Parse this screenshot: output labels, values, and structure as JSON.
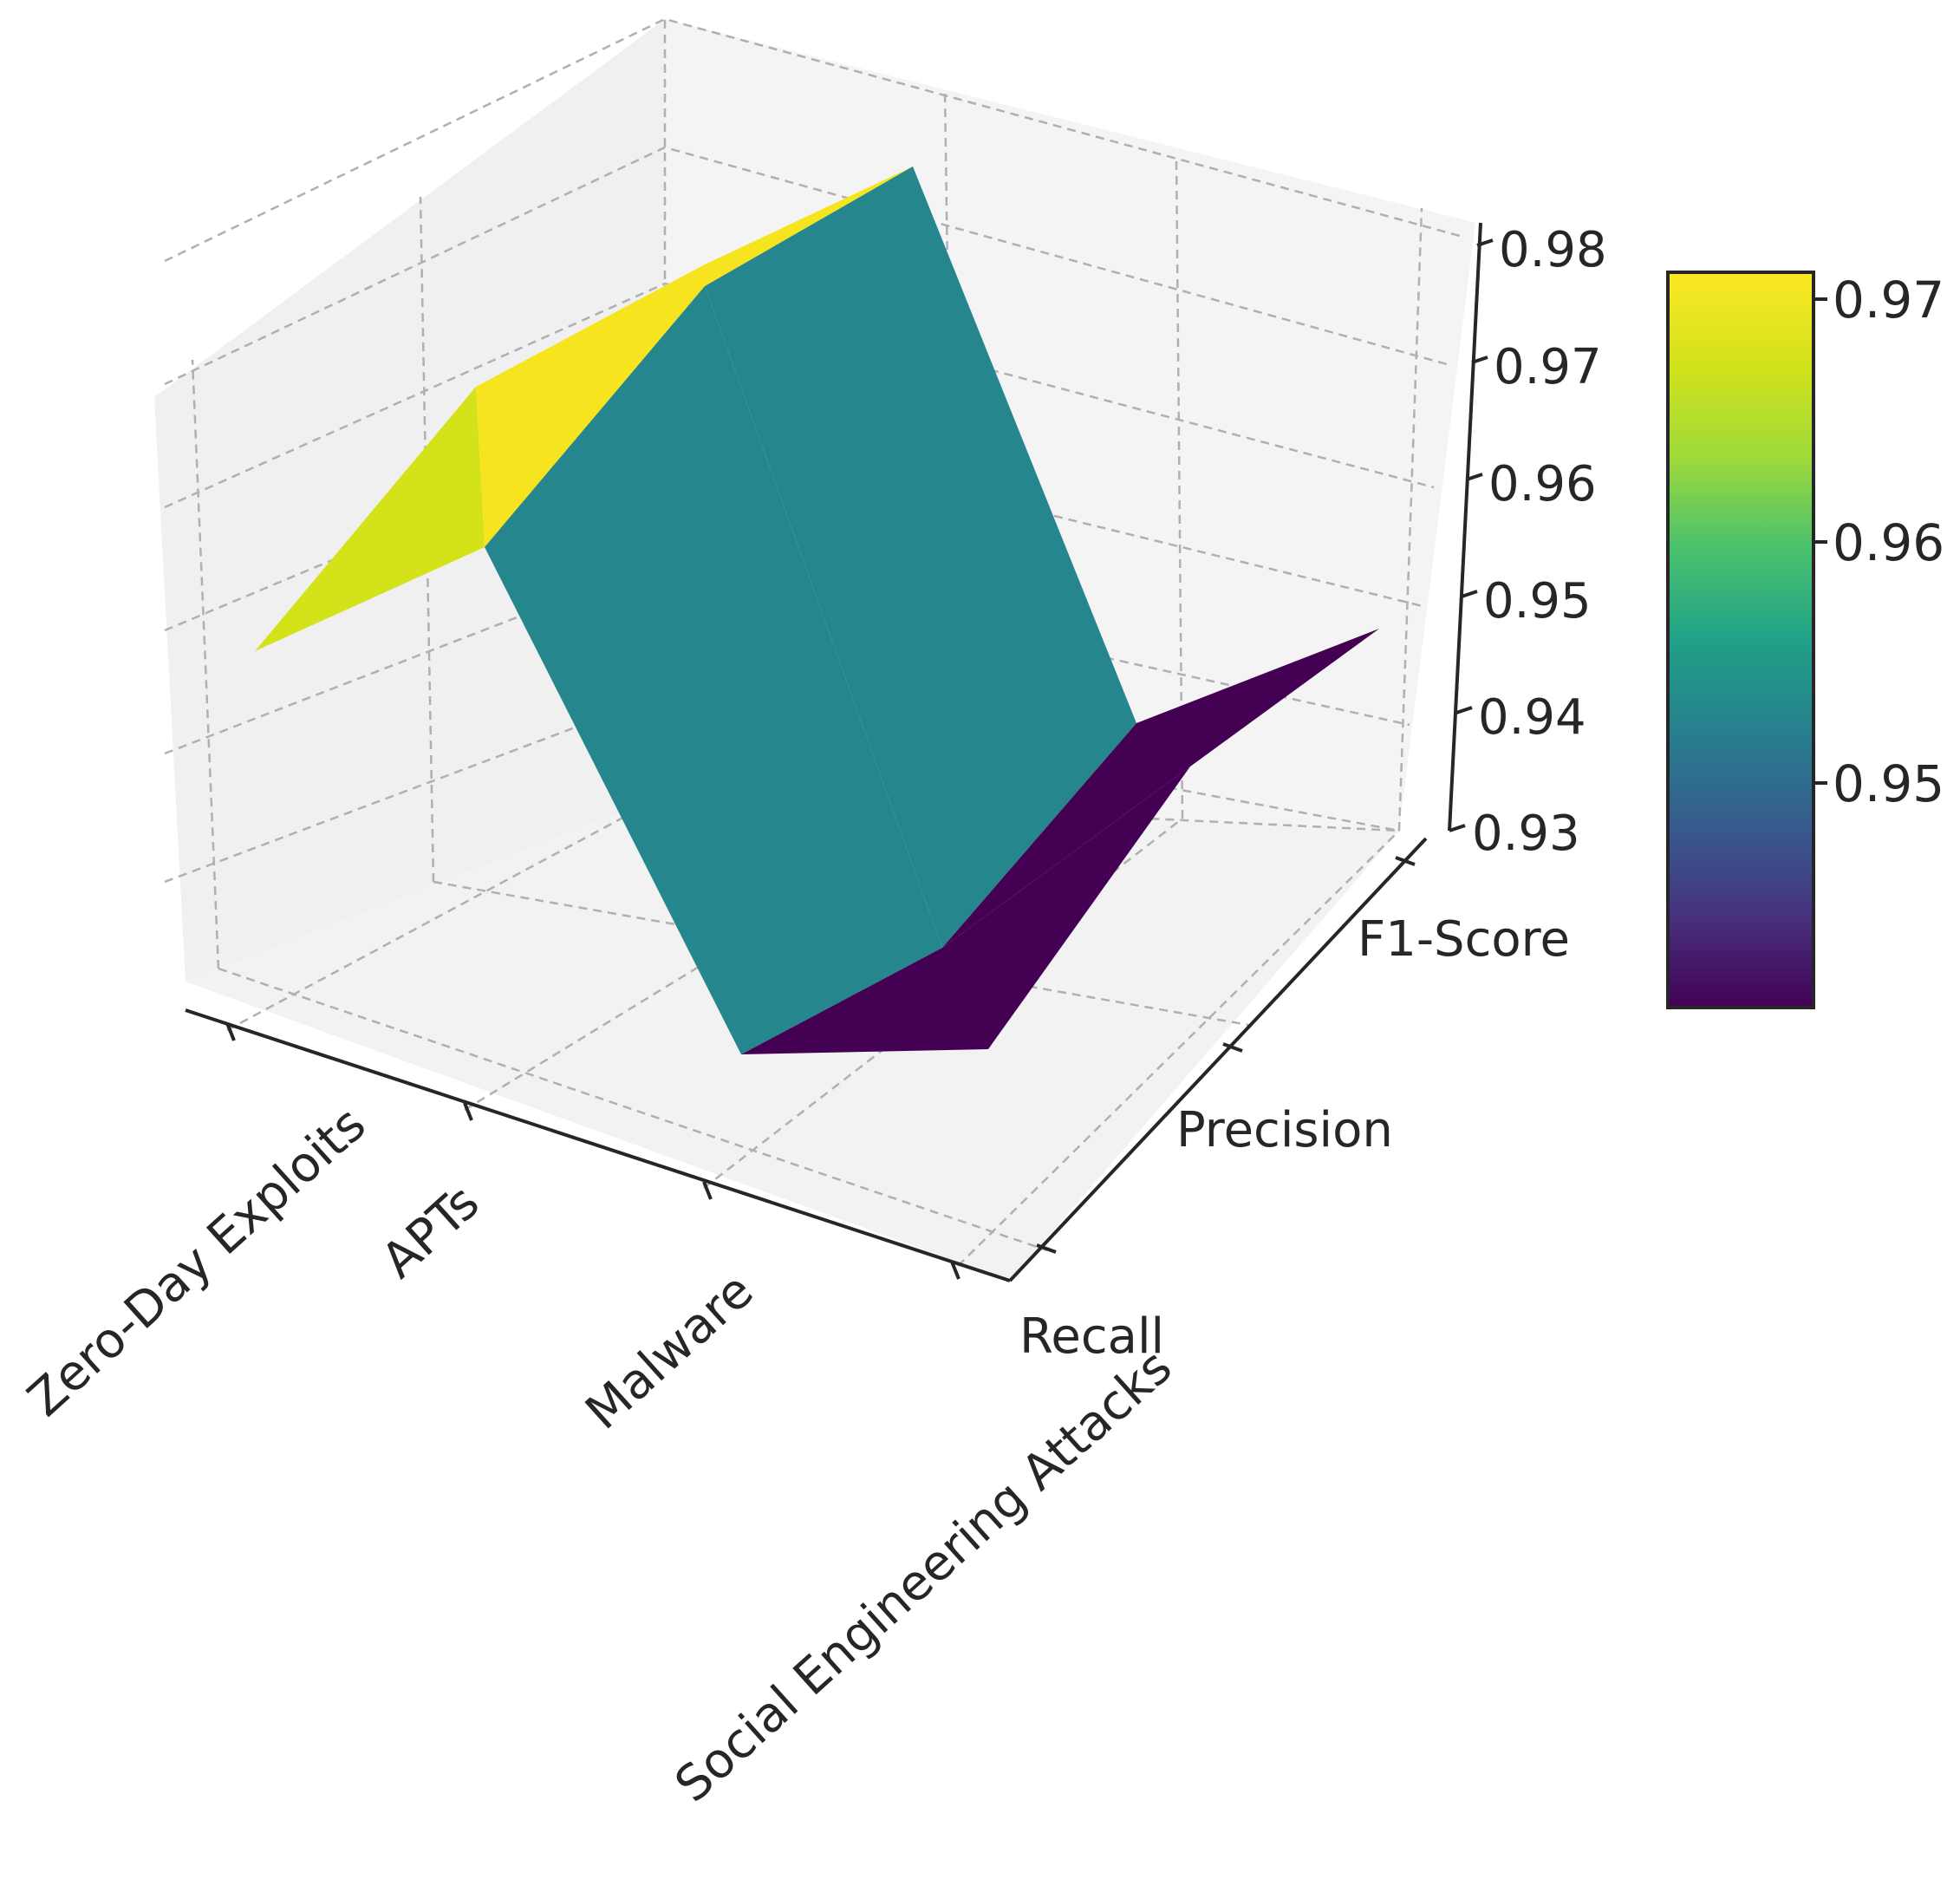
{
  "chart_data": {
    "type": "surface3d",
    "title": "",
    "xlabel": "",
    "ylabel": "",
    "zlabel": "",
    "x_categories": [
      "Zero-Day Exploits",
      "APTs",
      "Malware",
      "Social Engineering Attacks"
    ],
    "y_categories": [
      "Recall",
      "Precision",
      "F1-Score"
    ],
    "z": [
      [
        0.97,
        0.97,
        0.97
      ],
      [
        0.95,
        0.95,
        0.95
      ],
      [
        0.94,
        0.94,
        0.94
      ],
      [
        0.94,
        0.94,
        0.94
      ]
    ],
    "z_ticks": [
      "0.93",
      "0.94",
      "0.95",
      "0.96",
      "0.97",
      "0.98"
    ],
    "zlim": [
      0.93,
      0.98
    ],
    "colormap": "viridis",
    "colorbar": {
      "ticks": [
        "0.95",
        "0.96",
        "0.97"
      ],
      "range": [
        0.942,
        0.972
      ]
    },
    "grid": true,
    "colors": {
      "high_face": "#d4e21a",
      "mid_face": "#25878d",
      "low_face": "#440154"
    }
  }
}
